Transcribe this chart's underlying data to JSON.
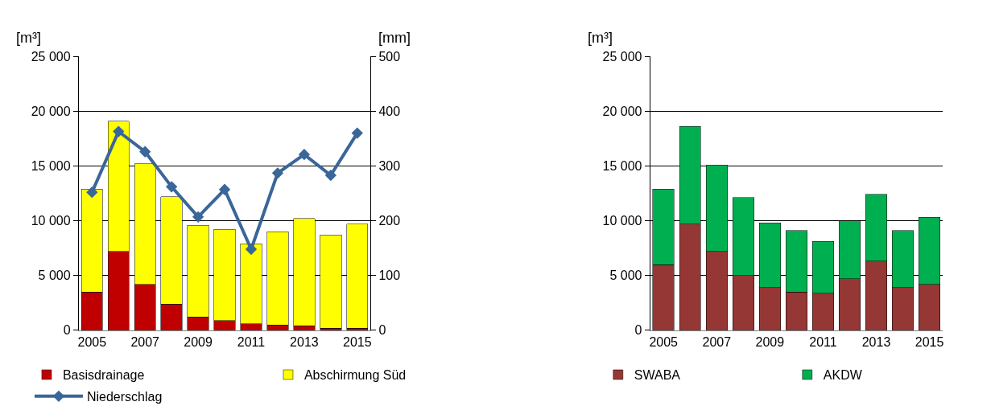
{
  "chart_data": [
    {
      "type": "bar",
      "stacked": true,
      "categories": [
        "2005",
        null,
        "2007",
        null,
        "2009",
        null,
        "2011",
        null,
        "2013",
        null,
        "2015"
      ],
      "series": [
        {
          "name": "Basisdrainage",
          "color": "#c00000",
          "values": [
            3500,
            7200,
            4200,
            2400,
            1200,
            900,
            600,
            500,
            400,
            200,
            200
          ]
        },
        {
          "name": "Abschirmung Süd",
          "color": "#ffff00",
          "values": [
            9400,
            11900,
            11000,
            9800,
            8400,
            8300,
            7300,
            8500,
            9800,
            8500,
            9500
          ]
        },
        {
          "name": "Niederschlag",
          "type": "line",
          "axis": "y2",
          "marker": "diamond",
          "color": "#3a6699",
          "values": [
            252,
            363,
            326,
            262,
            207,
            257,
            148,
            287,
            321,
            283,
            360
          ]
        }
      ],
      "ylabel": "[m³]",
      "y2label": "[mm]",
      "ylim": [
        0,
        25000
      ],
      "yticks": [
        0,
        {
          "value": 5000,
          "label": "5 000"
        },
        {
          "value": 10000,
          "label": "10 000"
        },
        {
          "value": 15000,
          "label": "15 000"
        },
        {
          "value": 20000,
          "label": "20 000"
        },
        {
          "value": 25000,
          "label": "25 000"
        }
      ],
      "y2lim": [
        0,
        500
      ],
      "y2ticks": [
        0,
        100,
        200,
        300,
        400,
        500
      ],
      "grid": "y",
      "legend": "bottom"
    },
    {
      "type": "bar",
      "stacked": true,
      "categories": [
        "2005",
        null,
        "2007",
        null,
        "2009",
        null,
        "2011",
        null,
        "2013",
        null,
        "2015"
      ],
      "series": [
        {
          "name": "SWABA",
          "color": "#953735",
          "values": [
            6000,
            9700,
            7200,
            5000,
            3900,
            3500,
            3400,
            4700,
            6300,
            3900,
            4200
          ]
        },
        {
          "name": "AKDW",
          "color": "#00b050",
          "values": [
            6900,
            8900,
            7900,
            7100,
            5900,
            5600,
            4700,
            5300,
            6100,
            5200,
            6100
          ]
        }
      ],
      "ylabel": "[m³]",
      "ylim": [
        0,
        25000
      ],
      "yticks": [
        0,
        {
          "value": 5000,
          "label": "5 000"
        },
        {
          "value": 10000,
          "label": "10 000"
        },
        {
          "value": 15000,
          "label": "15 000"
        },
        {
          "value": 20000,
          "label": "20 000"
        },
        {
          "value": 25000,
          "label": "25 000"
        }
      ],
      "grid": "y",
      "legend": "bottom"
    }
  ]
}
